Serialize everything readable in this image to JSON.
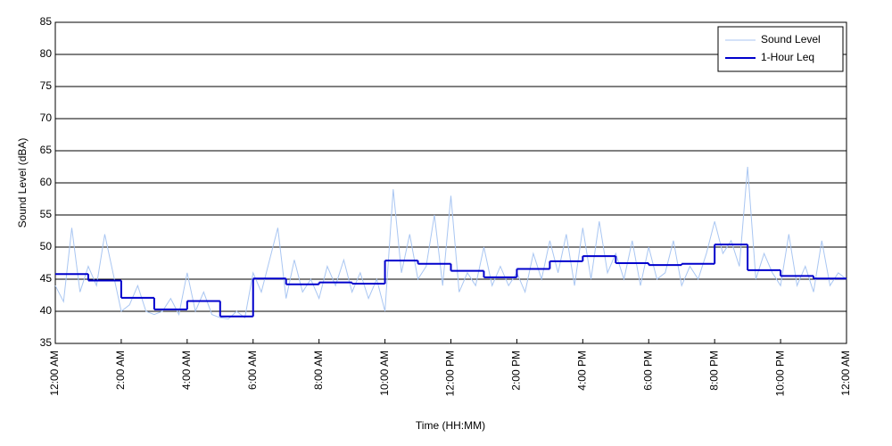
{
  "chart_data": {
    "type": "line",
    "xlabel": "Time (HH:MM)",
    "ylabel": "Sound Level (dBA)",
    "xlim": [
      0,
      24
    ],
    "ylim": [
      35,
      85
    ],
    "xticks": [
      {
        "value": 0,
        "label": "12:00 AM"
      },
      {
        "value": 2,
        "label": "2:00 AM"
      },
      {
        "value": 4,
        "label": "4:00 AM"
      },
      {
        "value": 6,
        "label": "6:00 AM"
      },
      {
        "value": 8,
        "label": "8:00 AM"
      },
      {
        "value": 10,
        "label": "10:00 AM"
      },
      {
        "value": 12,
        "label": "12:00 PM"
      },
      {
        "value": 14,
        "label": "2:00 PM"
      },
      {
        "value": 16,
        "label": "4:00 PM"
      },
      {
        "value": 18,
        "label": "6:00 PM"
      },
      {
        "value": 20,
        "label": "8:00 PM"
      },
      {
        "value": 22,
        "label": "10:00 PM"
      },
      {
        "value": 24,
        "label": "12:00 AM"
      }
    ],
    "yticks": [
      35,
      40,
      45,
      50,
      55,
      60,
      65,
      70,
      75,
      80,
      85
    ],
    "grid": true,
    "legend": "upper right",
    "series": [
      {
        "name": "Sound Level",
        "color": "#a9c6f2",
        "step": false,
        "x": [
          0,
          0.25,
          0.5,
          0.75,
          1,
          1.25,
          1.5,
          1.75,
          2,
          2.25,
          2.5,
          2.75,
          3,
          3.25,
          3.5,
          3.75,
          4,
          4.25,
          4.5,
          4.75,
          5,
          5.25,
          5.5,
          5.75,
          6,
          6.25,
          6.5,
          6.75,
          7,
          7.25,
          7.5,
          7.75,
          8,
          8.25,
          8.5,
          8.75,
          9,
          9.25,
          9.5,
          9.75,
          10,
          10.25,
          10.5,
          10.75,
          11,
          11.25,
          11.5,
          11.75,
          12,
          12.25,
          12.5,
          12.75,
          13,
          13.25,
          13.5,
          13.75,
          14,
          14.25,
          14.5,
          14.75,
          15,
          15.25,
          15.5,
          15.75,
          16,
          16.25,
          16.5,
          16.75,
          17,
          17.25,
          17.5,
          17.75,
          18,
          18.25,
          18.5,
          18.75,
          19,
          19.25,
          19.5,
          19.75,
          20,
          20.25,
          20.5,
          20.75,
          21,
          21.25,
          21.5,
          21.75,
          22,
          22.25,
          22.5,
          22.75,
          23,
          23.25,
          23.5,
          23.75,
          24
        ],
        "values": [
          44,
          41.5,
          53,
          43,
          47,
          44,
          52,
          46,
          40,
          41,
          44,
          40,
          39.5,
          40,
          42,
          39.5,
          46,
          40,
          43,
          39.5,
          39,
          38.8,
          40,
          39,
          46,
          43,
          48,
          53,
          42,
          48,
          43,
          45,
          42,
          47,
          44,
          48,
          43,
          46,
          42,
          45,
          40,
          59,
          46,
          52,
          45,
          47,
          55,
          44,
          58,
          43,
          46,
          44,
          50,
          44,
          47,
          44,
          46,
          43,
          49,
          45,
          51,
          46,
          52,
          44,
          53,
          45,
          54,
          46,
          49,
          45,
          51,
          44,
          50,
          45,
          46,
          51,
          44,
          47,
          45,
          49,
          54,
          49,
          51,
          47,
          62.5,
          45,
          49,
          46,
          44,
          52,
          44,
          47,
          43,
          51,
          44,
          46,
          45
        ]
      },
      {
        "name": "1-Hour Leq",
        "color": "#0000cc",
        "step": true,
        "x": [
          0,
          1,
          2,
          3,
          4,
          5,
          6,
          7,
          8,
          9,
          10,
          11,
          12,
          13,
          14,
          15,
          16,
          17,
          18,
          19,
          20,
          21,
          22,
          23
        ],
        "values": [
          45.8,
          44.8,
          42.1,
          40.3,
          41.6,
          39.2,
          45.1,
          44.2,
          44.5,
          44.3,
          47.9,
          47.4,
          46.3,
          45.3,
          46.6,
          47.8,
          48.6,
          47.5,
          47.2,
          47.4,
          50.4,
          46.4,
          45.5,
          45.1
        ]
      }
    ]
  }
}
